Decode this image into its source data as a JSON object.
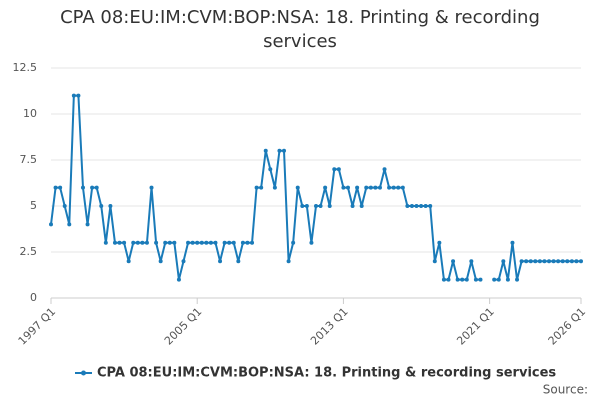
{
  "chart_data": {
    "type": "line",
    "title": "CPA 08:EU:IM:CVM:BOP:NSA: 18. Printing & recording services",
    "source": "Source:",
    "categories": [
      "1997 Q1",
      null,
      null,
      null,
      null,
      null,
      null,
      null,
      null,
      null,
      null,
      null,
      null,
      null,
      null,
      null,
      null,
      null,
      null,
      null,
      null,
      null,
      null,
      null,
      null,
      null,
      null,
      null,
      null,
      null,
      null,
      null,
      "2005 Q1",
      null,
      null,
      null,
      null,
      null,
      null,
      null,
      null,
      null,
      null,
      null,
      null,
      null,
      null,
      null,
      null,
      null,
      null,
      null,
      null,
      null,
      null,
      null,
      null,
      null,
      null,
      null,
      null,
      null,
      null,
      null,
      "2013 Q1",
      null,
      null,
      null,
      null,
      null,
      null,
      null,
      null,
      null,
      null,
      null,
      null,
      null,
      null,
      null,
      null,
      null,
      null,
      null,
      null,
      null,
      null,
      null,
      null,
      null,
      null,
      null,
      null,
      null,
      null,
      null,
      "2021 Q1",
      null,
      null,
      null,
      null,
      null,
      null,
      null,
      null,
      null,
      null,
      null,
      null,
      null,
      null,
      null,
      null,
      null,
      null,
      null,
      "2026 Q1"
    ],
    "series": [
      {
        "name": "CPA 08:EU:IM:CVM:BOP:NSA: 18. Printing & recording services",
        "color": "#1a7bb9",
        "values": [
          4,
          6,
          6,
          5,
          4,
          11,
          11,
          6,
          4,
          6,
          6,
          5,
          3,
          5,
          3,
          3,
          3,
          2,
          3,
          3,
          3,
          3,
          6,
          3,
          2,
          3,
          3,
          3,
          1,
          2,
          3,
          3,
          3,
          3,
          3,
          3,
          3,
          2,
          3,
          3,
          3,
          2,
          3,
          3,
          3,
          6,
          6,
          8,
          7,
          6,
          8,
          8,
          2,
          3,
          6,
          5,
          5,
          3,
          5,
          5,
          6,
          5,
          7,
          7,
          6,
          6,
          5,
          6,
          5,
          6,
          6,
          6,
          6,
          7,
          6,
          6,
          6,
          6,
          5,
          5,
          5,
          5,
          5,
          5,
          2,
          3,
          1,
          1,
          2,
          1,
          1,
          1,
          2,
          1,
          1,
          null,
          null,
          1,
          1,
          2,
          1,
          3,
          1,
          2,
          2,
          2,
          2,
          2,
          2,
          2,
          2,
          2,
          2,
          2,
          2,
          2,
          2
        ]
      }
    ],
    "ylim": [
      0,
      12.5
    ],
    "yticks": [
      0,
      2.5,
      5,
      7.5,
      10,
      12.5
    ],
    "grid": true
  }
}
